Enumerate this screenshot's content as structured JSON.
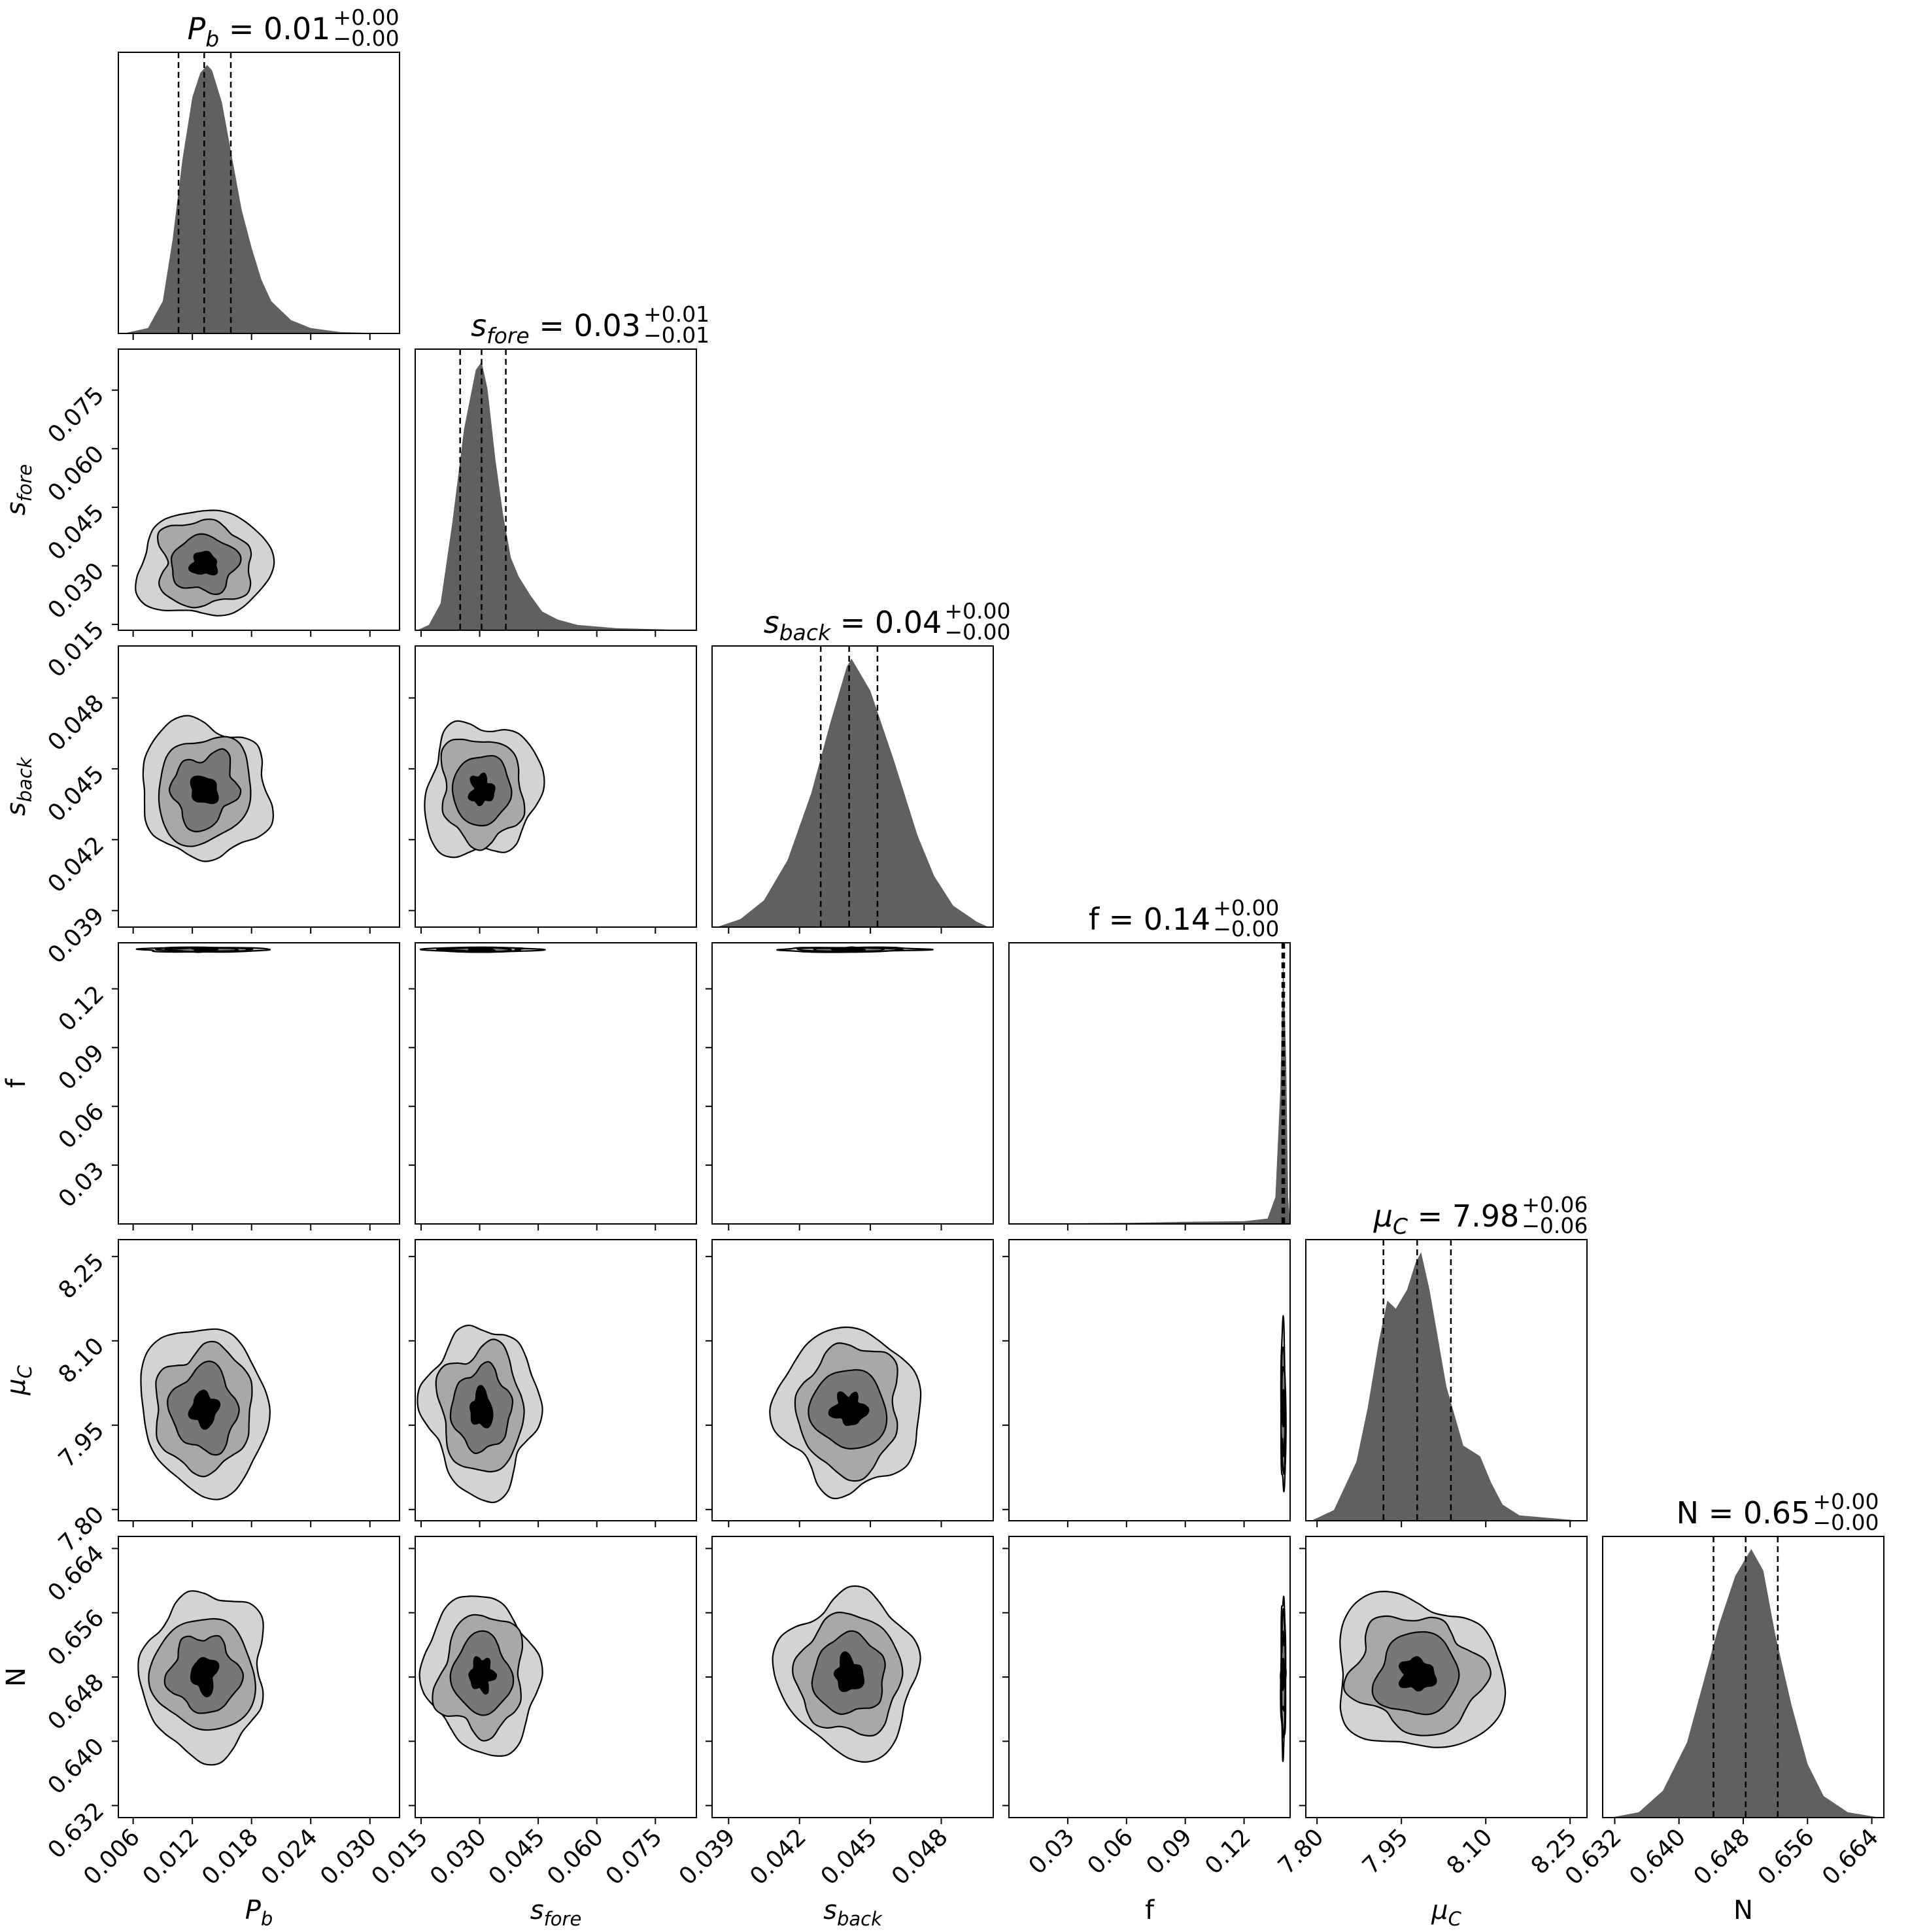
{
  "chart_data": {
    "type": "corner",
    "parameters": [
      {
        "key": "Pb",
        "label_main": "P",
        "label_sub": "b",
        "italic": true,
        "ticks": [
          "0.006",
          "0.012",
          "0.018",
          "0.024",
          "0.030"
        ],
        "tick_values": [
          0.006,
          0.012,
          0.018,
          0.024,
          0.03
        ],
        "range": [
          0.0045,
          0.033
        ],
        "title_value": "0.01",
        "title_plus": "+0.00",
        "title_minus": "−0.00",
        "quantiles": [
          0.0106,
          0.0132,
          0.0159
        ]
      },
      {
        "key": "sfore",
        "label_main": "s",
        "label_sub": "fore",
        "italic": true,
        "ticks": [
          "0.015",
          "0.030",
          "0.045",
          "0.060",
          "0.075"
        ],
        "tick_values": [
          0.015,
          0.03,
          0.045,
          0.06,
          0.075
        ],
        "range": [
          0.0135,
          0.0855
        ],
        "title_value": "0.03",
        "title_plus": "+0.01",
        "title_minus": "−0.01",
        "quantiles": [
          0.025,
          0.0305,
          0.0367
        ]
      },
      {
        "key": "sback",
        "label_main": "s",
        "label_sub": "back",
        "italic": true,
        "ticks": [
          "0.039",
          "0.042",
          "0.045",
          "0.048"
        ],
        "tick_values": [
          0.039,
          0.042,
          0.045,
          0.048
        ],
        "range": [
          0.0383,
          0.0502
        ],
        "title_value": "0.04",
        "title_plus": "+0.00",
        "title_minus": "−0.00",
        "quantiles": [
          0.0429,
          0.0441,
          0.0453
        ]
      },
      {
        "key": "f",
        "label_main": "f",
        "label_sub": "",
        "italic": false,
        "ticks": [
          "0.03",
          "0.06",
          "0.09",
          "0.12"
        ],
        "tick_values": [
          0.03,
          0.06,
          0.09,
          0.12
        ],
        "range": [
          0.0,
          0.1435
        ],
        "title_value": "0.14",
        "title_plus": "+0.00",
        "title_minus": "−0.00",
        "quantiles": [
          0.1395,
          0.14,
          0.1405
        ]
      },
      {
        "key": "muC",
        "label_main": "μ",
        "label_sub": "C",
        "italic": true,
        "ticks": [
          "7.80",
          "7.95",
          "8.10",
          "8.25"
        ],
        "tick_values": [
          7.8,
          7.95,
          8.1,
          8.25
        ],
        "range": [
          7.78,
          8.28
        ],
        "title_value": "7.98",
        "title_plus": "+0.06",
        "title_minus": "−0.06",
        "quantiles": [
          7.918,
          7.978,
          8.038
        ]
      },
      {
        "key": "N",
        "label_main": "N",
        "label_sub": "",
        "italic": false,
        "ticks": [
          "0.632",
          "0.640",
          "0.648",
          "0.656",
          "0.664"
        ],
        "tick_values": [
          0.632,
          0.64,
          0.648,
          0.656,
          0.664
        ],
        "range": [
          0.6305,
          0.6655
        ],
        "title_value": "0.65",
        "title_plus": "+0.00",
        "title_minus": "−0.00",
        "quantiles": [
          0.6443,
          0.6483,
          0.6523
        ]
      }
    ],
    "diagonal_histograms": [
      [
        [
          0.005,
          0
        ],
        [
          0.0075,
          0.02
        ],
        [
          0.009,
          0.12
        ],
        [
          0.01,
          0.35
        ],
        [
          0.011,
          0.65
        ],
        [
          0.012,
          0.88
        ],
        [
          0.0128,
          0.97
        ],
        [
          0.0135,
          1.0
        ],
        [
          0.014,
          0.98
        ],
        [
          0.015,
          0.86
        ],
        [
          0.016,
          0.66
        ],
        [
          0.017,
          0.46
        ],
        [
          0.018,
          0.32
        ],
        [
          0.019,
          0.2
        ],
        [
          0.02,
          0.12
        ],
        [
          0.022,
          0.05
        ],
        [
          0.024,
          0.02
        ],
        [
          0.027,
          0.005
        ],
        [
          0.032,
          0
        ]
      ],
      [
        [
          0.014,
          0
        ],
        [
          0.017,
          0.02
        ],
        [
          0.02,
          0.1
        ],
        [
          0.023,
          0.4
        ],
        [
          0.026,
          0.75
        ],
        [
          0.029,
          0.97
        ],
        [
          0.0305,
          1.0
        ],
        [
          0.032,
          0.9
        ],
        [
          0.034,
          0.64
        ],
        [
          0.036,
          0.43
        ],
        [
          0.038,
          0.27
        ],
        [
          0.04,
          0.2
        ],
        [
          0.043,
          0.13
        ],
        [
          0.046,
          0.07
        ],
        [
          0.05,
          0.04
        ],
        [
          0.055,
          0.02
        ],
        [
          0.065,
          0.008
        ],
        [
          0.085,
          0
        ]
      ],
      [
        [
          0.0385,
          0
        ],
        [
          0.0395,
          0.03
        ],
        [
          0.0405,
          0.1
        ],
        [
          0.0415,
          0.25
        ],
        [
          0.0425,
          0.5
        ],
        [
          0.0433,
          0.76
        ],
        [
          0.044,
          0.97
        ],
        [
          0.0442,
          1.0
        ],
        [
          0.045,
          0.88
        ],
        [
          0.046,
          0.62
        ],
        [
          0.047,
          0.34
        ],
        [
          0.0477,
          0.19
        ],
        [
          0.0485,
          0.08
        ],
        [
          0.0495,
          0.02
        ],
        [
          0.05,
          0
        ]
      ],
      [
        [
          0.0,
          0
        ],
        [
          0.02,
          0.002
        ],
        [
          0.06,
          0.004
        ],
        [
          0.09,
          0.008
        ],
        [
          0.12,
          0.01
        ],
        [
          0.132,
          0.02
        ],
        [
          0.136,
          0.1
        ],
        [
          0.1385,
          0.5
        ],
        [
          0.14,
          1.0
        ],
        [
          0.1415,
          0.6
        ],
        [
          0.1425,
          0.1
        ],
        [
          0.1435,
          0
        ]
      ],
      [
        [
          7.79,
          0
        ],
        [
          7.83,
          0.04
        ],
        [
          7.87,
          0.22
        ],
        [
          7.89,
          0.42
        ],
        [
          7.91,
          0.67
        ],
        [
          7.925,
          0.82
        ],
        [
          7.94,
          0.79
        ],
        [
          7.96,
          0.86
        ],
        [
          7.975,
          0.96
        ],
        [
          7.985,
          1.0
        ],
        [
          8.0,
          0.86
        ],
        [
          8.03,
          0.5
        ],
        [
          8.06,
          0.28
        ],
        [
          8.09,
          0.24
        ],
        [
          8.11,
          0.14
        ],
        [
          8.13,
          0.06
        ],
        [
          8.16,
          0.02
        ],
        [
          8.27,
          0
        ]
      ],
      [
        [
          0.6315,
          0
        ],
        [
          0.635,
          0.02
        ],
        [
          0.638,
          0.1
        ],
        [
          0.641,
          0.28
        ],
        [
          0.643,
          0.5
        ],
        [
          0.645,
          0.72
        ],
        [
          0.647,
          0.9
        ],
        [
          0.649,
          1.0
        ],
        [
          0.6505,
          0.92
        ],
        [
          0.652,
          0.68
        ],
        [
          0.654,
          0.42
        ],
        [
          0.656,
          0.2
        ],
        [
          0.658,
          0.08
        ],
        [
          0.661,
          0.02
        ],
        [
          0.665,
          0
        ]
      ]
    ],
    "contour_levels": 4,
    "contour_fill_colors": [
      "#d3d3d3",
      "#a8a8a8",
      "#777777",
      "#000000"
    ],
    "histogram_color": "#606060",
    "quantile_line_style": "dashed"
  }
}
